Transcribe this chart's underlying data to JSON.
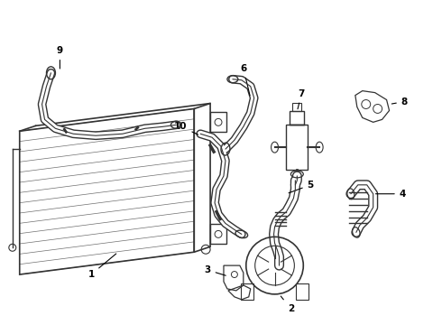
{
  "background_color": "#ffffff",
  "line_color": "#333333",
  "fig_width": 4.9,
  "fig_height": 3.6,
  "dpi": 100
}
